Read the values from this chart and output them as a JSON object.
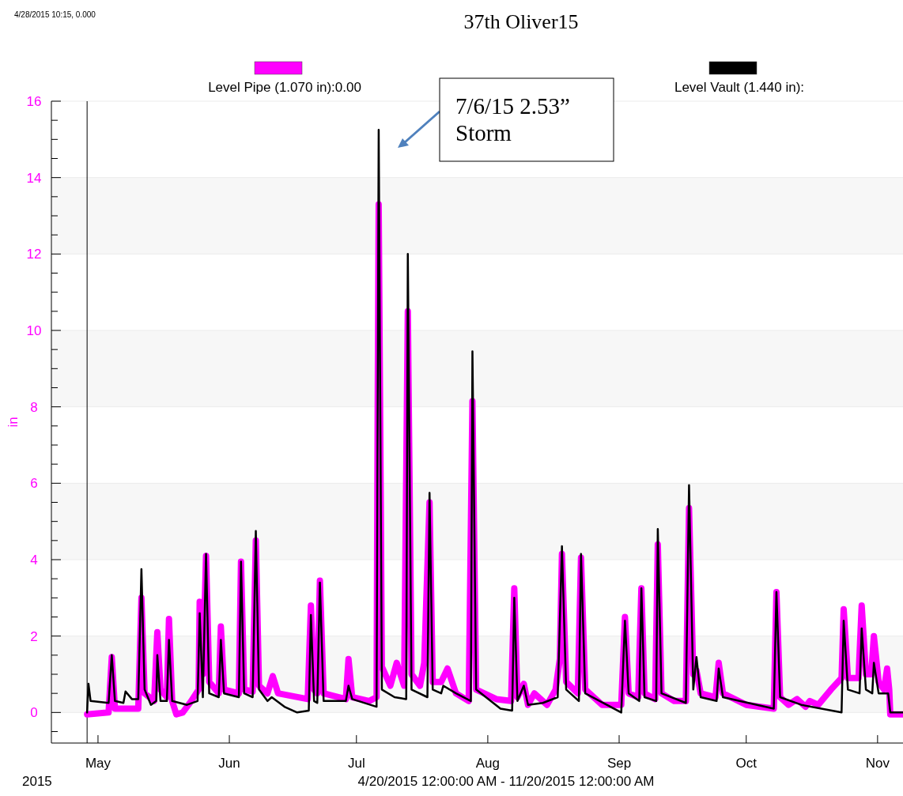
{
  "chart_data": {
    "type": "line",
    "title": "37th Oliver15",
    "xlabel": "4/20/2015 12:00:00 AM - 11/20/2015 12:00:00 AM",
    "ylabel": "in",
    "legend": "top",
    "grid": true,
    "line_style": "solid",
    "marker": "none",
    "xlim": [
      "2015-04-20",
      "2015-11-07"
    ],
    "xticks": [
      {
        "value": "2015-05-01",
        "label": "May"
      },
      {
        "value": "2015-06-01",
        "label": "Jun"
      },
      {
        "value": "2015-07-01",
        "label": "Jul"
      },
      {
        "value": "2015-08-01",
        "label": "Aug"
      },
      {
        "value": "2015-09-01",
        "label": "Sep"
      },
      {
        "value": "2015-10-01",
        "label": "Oct"
      },
      {
        "value": "2015-11-01",
        "label": "Nov"
      }
    ],
    "ylim": [
      -0.8,
      16
    ],
    "yticks": [
      {
        "value": -0.5,
        "label": null
      },
      0,
      {
        "value": 0.5,
        "label": null
      },
      {
        "value": 1,
        "label": null
      },
      {
        "value": 1.5,
        "label": null
      },
      2,
      {
        "value": 2.5,
        "label": null
      },
      {
        "value": 3,
        "label": null
      },
      {
        "value": 3.5,
        "label": null
      },
      4,
      {
        "value": 4.5,
        "label": null
      },
      {
        "value": 5,
        "label": null
      },
      {
        "value": 5.5,
        "label": null
      },
      6,
      {
        "value": 6.5,
        "label": null
      },
      {
        "value": 7,
        "label": null
      },
      {
        "value": 7.5,
        "label": null
      },
      8,
      {
        "value": 8.5,
        "label": null
      },
      {
        "value": 9,
        "label": null
      },
      {
        "value": 9.5,
        "label": null
      },
      10,
      {
        "value": 10.5,
        "label": null
      },
      {
        "value": 11,
        "label": null
      },
      {
        "value": 11.5,
        "label": null
      },
      12,
      {
        "value": 12.5,
        "label": null
      },
      {
        "value": 13,
        "label": null
      },
      {
        "value": 13.5,
        "label": null
      },
      14,
      {
        "value": 14.5,
        "label": null
      },
      {
        "value": 15,
        "label": null
      },
      {
        "value": 15.5,
        "label": null
      },
      16
    ],
    "ref_lines": [
      {
        "axis": "x",
        "value": "2015-04-28T10:15",
        "color": "#000000"
      }
    ],
    "annotations": [
      "4/28/2015 10:15, 0.000",
      "2015",
      "7/6/15 2.53”\nStorm"
    ],
    "series": [
      {
        "name": "Level Pipe (1.070 in):0.00",
        "color": "#ff00ff",
        "x": [
          "2015-04-28T10:15",
          "2015-05-03T12:00",
          "2015-05-04T06:00",
          "2015-05-05T00:00",
          "2015-05-10T12:00",
          "2015-05-11T06:00",
          "2015-05-12T00:00",
          "2015-05-14T06:00",
          "2015-05-15T00:00",
          "2015-05-15T18:00",
          "2015-05-17T06:00",
          "2015-05-17T18:00",
          "2015-05-18T12:00",
          "2015-05-19T12:00",
          "2015-05-21T00:00",
          "2015-05-23T00:00",
          "2015-05-24T18:00",
          "2015-05-25T00:00",
          "2015-05-25T18:00",
          "2015-05-26T12:00",
          "2015-05-27T06:00",
          "2015-05-29T12:00",
          "2015-05-30T00:00",
          "2015-05-30T18:00",
          "2015-06-03T06:00",
          "2015-06-03T18:00",
          "2015-06-04T12:00",
          "2015-06-06T12:00",
          "2015-06-07T06:00",
          "2015-06-08T00:00",
          "2015-06-10T00:00",
          "2015-06-11T06:00",
          "2015-06-12T12:00",
          "2015-06-19T12:00",
          "2015-06-20T06:00",
          "2015-06-21T00:00",
          "2015-06-21T18:00",
          "2015-06-22T09:00",
          "2015-06-23T06:00",
          "2015-06-28T12:00",
          "2015-06-29T03:00",
          "2015-06-30T00:00",
          "2015-07-04T00:00",
          "2015-07-05T18:00",
          "2015-07-06T00:00",
          "2015-07-06T06:00",
          "2015-07-07T00:00",
          "2015-07-09T00:00",
          "2015-07-10T12:00",
          "2015-07-12T06:00",
          "2015-07-13T03:00",
          "2015-07-14T00:00",
          "2015-07-16T00:00",
          "2015-07-17T00:00",
          "2015-07-18T06:00",
          "2015-07-19T00:00",
          "2015-07-21T00:00",
          "2015-07-22T12:00",
          "2015-07-24T12:00",
          "2015-07-27T12:00",
          "2015-07-28T09:00",
          "2015-07-29T06:00",
          "2015-08-03T00:00",
          "2015-08-06T12:00",
          "2015-08-07T06:00",
          "2015-08-08T00:00",
          "2015-08-09T12:00",
          "2015-08-10T12:00",
          "2015-08-12T00:00",
          "2015-08-15T00:00",
          "2015-08-17T00:00",
          "2015-08-18T00:00",
          "2015-08-18T12:00",
          "2015-08-19T12:00",
          "2015-08-22T06:00",
          "2015-08-23T00:00",
          "2015-08-24T00:00",
          "2015-08-28T00:00",
          "2015-09-01T12:00",
          "2015-09-02T09:00",
          "2015-09-03T06:00",
          "2015-09-05T12:00",
          "2015-09-06T06:00",
          "2015-09-07T00:00",
          "2015-09-09T12:00",
          "2015-09-10T03:00",
          "2015-09-11T00:00",
          "2015-09-14T00:00",
          "2015-09-16T18:00",
          "2015-09-17T12:00",
          "2015-09-18T12:00",
          "2015-09-19T06:00",
          "2015-09-20T06:00",
          "2015-09-23T18:00",
          "2015-09-24T12:00",
          "2015-09-25T12:00",
          "2015-10-01T00:00",
          "2015-10-07T12:00",
          "2015-10-08T03:00",
          "2015-10-09T00:00",
          "2015-10-11T00:00",
          "2015-10-13T00:00",
          "2015-10-15T00:00",
          "2015-10-16T00:00",
          "2015-10-18T00:00",
          "2015-10-21T00:00",
          "2015-10-23T12:00",
          "2015-10-24T00:00",
          "2015-10-25T00:00",
          "2015-10-27T12:00",
          "2015-10-28T06:00",
          "2015-10-29T06:00",
          "2015-10-30T12:00",
          "2015-10-31T03:00",
          "2015-11-01T06:00",
          "2015-11-02T12:00",
          "2015-11-03T06:00",
          "2015-11-03T18:00",
          "2015-11-04T00:00",
          "2015-11-07T00:00"
        ],
        "values": [
          -0.05,
          0.0,
          1.45,
          0.1,
          0.1,
          3.0,
          0.5,
          0.3,
          2.1,
          0.6,
          0.4,
          2.45,
          0.3,
          -0.05,
          0.0,
          0.3,
          0.6,
          2.9,
          1.0,
          4.1,
          0.8,
          0.5,
          2.25,
          0.6,
          0.5,
          3.95,
          0.6,
          0.55,
          4.5,
          0.7,
          0.5,
          0.95,
          0.5,
          0.35,
          2.8,
          0.6,
          0.5,
          3.45,
          0.5,
          0.35,
          1.4,
          0.4,
          0.3,
          0.4,
          7.7,
          13.3,
          1.2,
          0.7,
          1.3,
          0.7,
          10.5,
          1.0,
          0.7,
          1.3,
          5.5,
          0.8,
          0.8,
          1.15,
          0.5,
          0.3,
          8.15,
          0.6,
          0.35,
          0.3,
          3.25,
          0.4,
          0.75,
          0.2,
          0.5,
          0.2,
          0.6,
          1.4,
          4.15,
          0.8,
          0.5,
          4.05,
          0.6,
          0.2,
          0.2,
          2.5,
          0.5,
          0.4,
          3.25,
          0.5,
          0.35,
          4.4,
          0.5,
          0.3,
          0.3,
          5.35,
          1.0,
          1.1,
          0.5,
          0.4,
          1.3,
          0.5,
          0.2,
          0.1,
          3.15,
          0.4,
          0.2,
          0.35,
          0.15,
          0.3,
          0.2,
          0.6,
          0.9,
          2.7,
          0.9,
          0.9,
          2.8,
          1.0,
          1.0,
          2.0,
          0.8,
          0.6,
          1.15,
          0.6,
          -0.05,
          -0.05
        ]
      },
      {
        "name": "Level Vault (1.440 in):",
        "color": "#000000",
        "x": [
          "2015-04-28T10:15",
          "2015-04-28T12:00",
          "2015-04-28T18:00",
          "2015-04-29T06:00",
          "2015-05-03T12:00",
          "2015-05-04T06:00",
          "2015-05-05T00:00",
          "2015-05-07T00:00",
          "2015-05-07T12:00",
          "2015-05-09T00:00",
          "2015-05-10T12:00",
          "2015-05-11T06:00",
          "2015-05-12T00:00",
          "2015-05-13T12:00",
          "2015-05-14T18:00",
          "2015-05-15T00:00",
          "2015-05-15T18:00",
          "2015-05-17T06:00",
          "2015-05-17T18:00",
          "2015-05-18T12:00",
          "2015-05-22T00:00",
          "2015-05-24T12:00",
          "2015-05-25T00:00",
          "2015-05-25T18:00",
          "2015-05-26T12:00",
          "2015-05-27T06:00",
          "2015-05-29T12:00",
          "2015-05-30T00:00",
          "2015-05-30T18:00",
          "2015-06-03T06:00",
          "2015-06-03T18:00",
          "2015-06-04T12:00",
          "2015-06-06T12:00",
          "2015-06-07T06:00",
          "2015-06-08T00:00",
          "2015-06-10T00:00",
          "2015-06-11T00:00",
          "2015-06-14T00:00",
          "2015-06-17T00:00",
          "2015-06-19T18:00",
          "2015-06-20T06:00",
          "2015-06-21T00:00",
          "2015-06-21T18:00",
          "2015-06-22T09:00",
          "2015-06-23T06:00",
          "2015-06-28T12:00",
          "2015-06-29T03:00",
          "2015-06-30T00:00",
          "2015-07-05T18:00",
          "2015-07-06T06:00",
          "2015-07-07T00:00",
          "2015-07-10T00:00",
          "2015-07-12T18:00",
          "2015-07-13T03:00",
          "2015-07-14T00:00",
          "2015-07-17T18:00",
          "2015-07-18T06:00",
          "2015-07-19T00:00",
          "2015-07-21T00:00",
          "2015-07-21T12:00",
          "2015-07-24T12:00",
          "2015-07-28T00:00",
          "2015-07-28T09:00",
          "2015-07-29T06:00",
          "2015-08-04T00:00",
          "2015-08-06T18:00",
          "2015-08-07T06:00",
          "2015-08-08T00:00",
          "2015-08-09T12:00",
          "2015-08-10T12:00",
          "2015-08-14T00:00",
          "2015-08-17T12:00",
          "2015-08-18T12:00",
          "2015-08-19T12:00",
          "2015-08-22T12:00",
          "2015-08-23T00:00",
          "2015-08-24T00:00",
          "2015-09-01T12:00",
          "2015-09-02T09:00",
          "2015-09-03T06:00",
          "2015-09-05T18:00",
          "2015-09-06T06:00",
          "2015-09-07T00:00",
          "2015-09-09T18:00",
          "2015-09-10T03:00",
          "2015-09-11T00:00",
          "2015-09-16T18:00",
          "2015-09-17T12:00",
          "2015-09-18T12:00",
          "2015-09-19T06:00",
          "2015-09-20T06:00",
          "2015-09-24T00:00",
          "2015-09-24T12:00",
          "2015-09-25T12:00",
          "2015-10-07T12:00",
          "2015-10-08T03:00",
          "2015-10-09T00:00",
          "2015-10-14T00:00",
          "2015-10-23T12:00",
          "2015-10-24T00:00",
          "2015-10-25T00:00",
          "2015-10-27T18:00",
          "2015-10-28T06:00",
          "2015-10-29T06:00",
          "2015-10-30T18:00",
          "2015-10-31T03:00",
          "2015-11-01T06:00",
          "2015-11-03T12:00",
          "2015-11-04T00:00",
          "2015-11-07T00:00"
        ],
        "values": [
          0.0,
          0.2,
          0.75,
          0.3,
          0.25,
          1.5,
          0.3,
          0.25,
          0.55,
          0.35,
          0.35,
          3.75,
          0.6,
          0.2,
          0.3,
          1.5,
          0.3,
          0.3,
          1.9,
          0.3,
          0.2,
          0.3,
          2.6,
          0.4,
          4.15,
          0.5,
          0.4,
          1.9,
          0.5,
          0.4,
          3.95,
          0.5,
          0.4,
          4.75,
          0.6,
          0.3,
          0.4,
          0.15,
          0.0,
          0.05,
          2.55,
          0.3,
          0.25,
          3.4,
          0.3,
          0.3,
          0.7,
          0.35,
          0.15,
          15.25,
          0.6,
          0.4,
          0.35,
          12.0,
          0.6,
          0.4,
          5.75,
          0.6,
          0.5,
          0.7,
          0.5,
          0.3,
          9.45,
          0.6,
          0.1,
          0.05,
          3.0,
          0.3,
          0.7,
          0.2,
          0.25,
          0.4,
          4.35,
          0.6,
          0.3,
          4.15,
          0.5,
          0.0,
          2.4,
          0.5,
          0.3,
          3.25,
          0.4,
          0.3,
          4.8,
          0.5,
          0.25,
          5.95,
          0.6,
          1.45,
          0.4,
          0.3,
          1.15,
          0.4,
          0.1,
          3.15,
          0.4,
          0.2,
          0.0,
          2.4,
          0.6,
          0.5,
          2.2,
          0.6,
          0.5,
          1.3,
          0.5,
          0.5,
          0.0,
          0.0
        ]
      }
    ]
  }
}
